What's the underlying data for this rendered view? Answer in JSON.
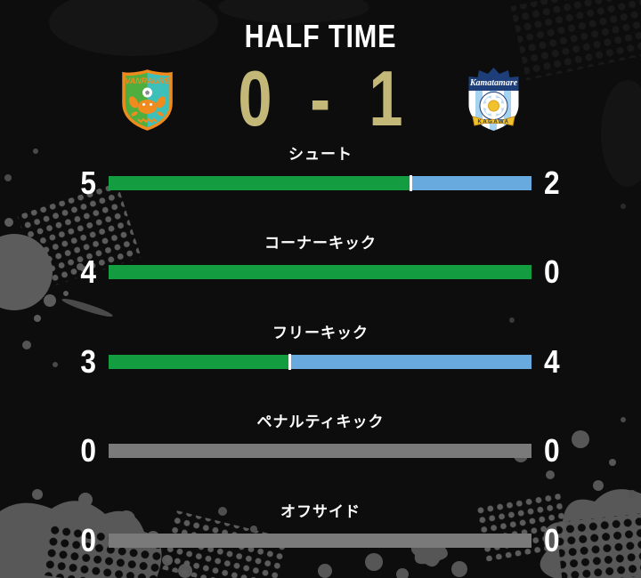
{
  "header": {
    "title": "HALF TIME"
  },
  "scoreboard": {
    "home_score": "0",
    "separator": "-",
    "away_score": "1",
    "score_color": "#c3b878",
    "home_crest_text": "VANRAURE",
    "away_crest_text": "Kamatamare",
    "away_crest_banner": "KAGAWA"
  },
  "colors": {
    "background": "#0d0d0d",
    "home_bar": "#149c40",
    "away_bar": "#68aadd",
    "empty_bar": "#7a7a7a",
    "separator": "#ffffff"
  },
  "stats": [
    {
      "label": "シュート",
      "home": 5,
      "away": 2
    },
    {
      "label": "コーナーキック",
      "home": 4,
      "away": 0
    },
    {
      "label": "フリーキック",
      "home": 3,
      "away": 4
    },
    {
      "label": "ペナルティキック",
      "home": 0,
      "away": 0
    },
    {
      "label": "オフサイド",
      "home": 0,
      "away": 0
    }
  ]
}
